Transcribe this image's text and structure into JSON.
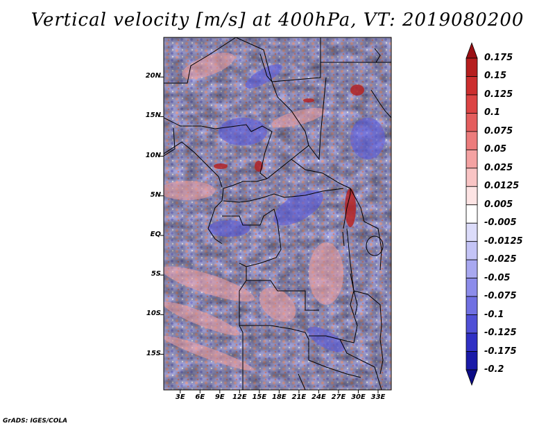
{
  "title": "Vertical velocity [m/s] at 400hPa, VT: 2019080200",
  "footer": "GrADS: IGES/COLA",
  "map": {
    "lat_labels": [
      "20N",
      "15N",
      "10N",
      "5N",
      "EQ",
      "5S",
      "10S",
      "15S"
    ],
    "lat_values": [
      20,
      15,
      10,
      5,
      0,
      -5,
      -10,
      -15
    ],
    "lon_labels": [
      "3E",
      "6E",
      "9E",
      "12E",
      "15E",
      "18E",
      "21E",
      "24E",
      "27E",
      "30E",
      "33E"
    ],
    "lon_values": [
      3,
      6,
      9,
      12,
      15,
      18,
      21,
      24,
      27,
      30,
      33
    ],
    "lon_range": [
      0.5,
      35
    ],
    "lat_range": [
      -19.5,
      25
    ]
  },
  "colorbar": {
    "labels": [
      "0.175",
      "0.15",
      "0.125",
      "0.1",
      "0.075",
      "0.05",
      "0.025",
      "0.0125",
      "0.005",
      "-0.005",
      "-0.0125",
      "-0.025",
      "-0.05",
      "-0.075",
      "-0.1",
      "-0.125",
      "-0.175",
      "-0.2"
    ],
    "colors": [
      "#9a1014",
      "#b61e1e",
      "#cc2e2e",
      "#dc4444",
      "#e45e5e",
      "#ec7c7c",
      "#f4a2a2",
      "#f9c4c4",
      "#fde4e4",
      "#ffffff",
      "#dcdcfa",
      "#c4c4f6",
      "#a8a8f0",
      "#8c8cea",
      "#7070e2",
      "#5050d6",
      "#3030c4",
      "#1a1aa8",
      "#0c0c86"
    ]
  }
}
